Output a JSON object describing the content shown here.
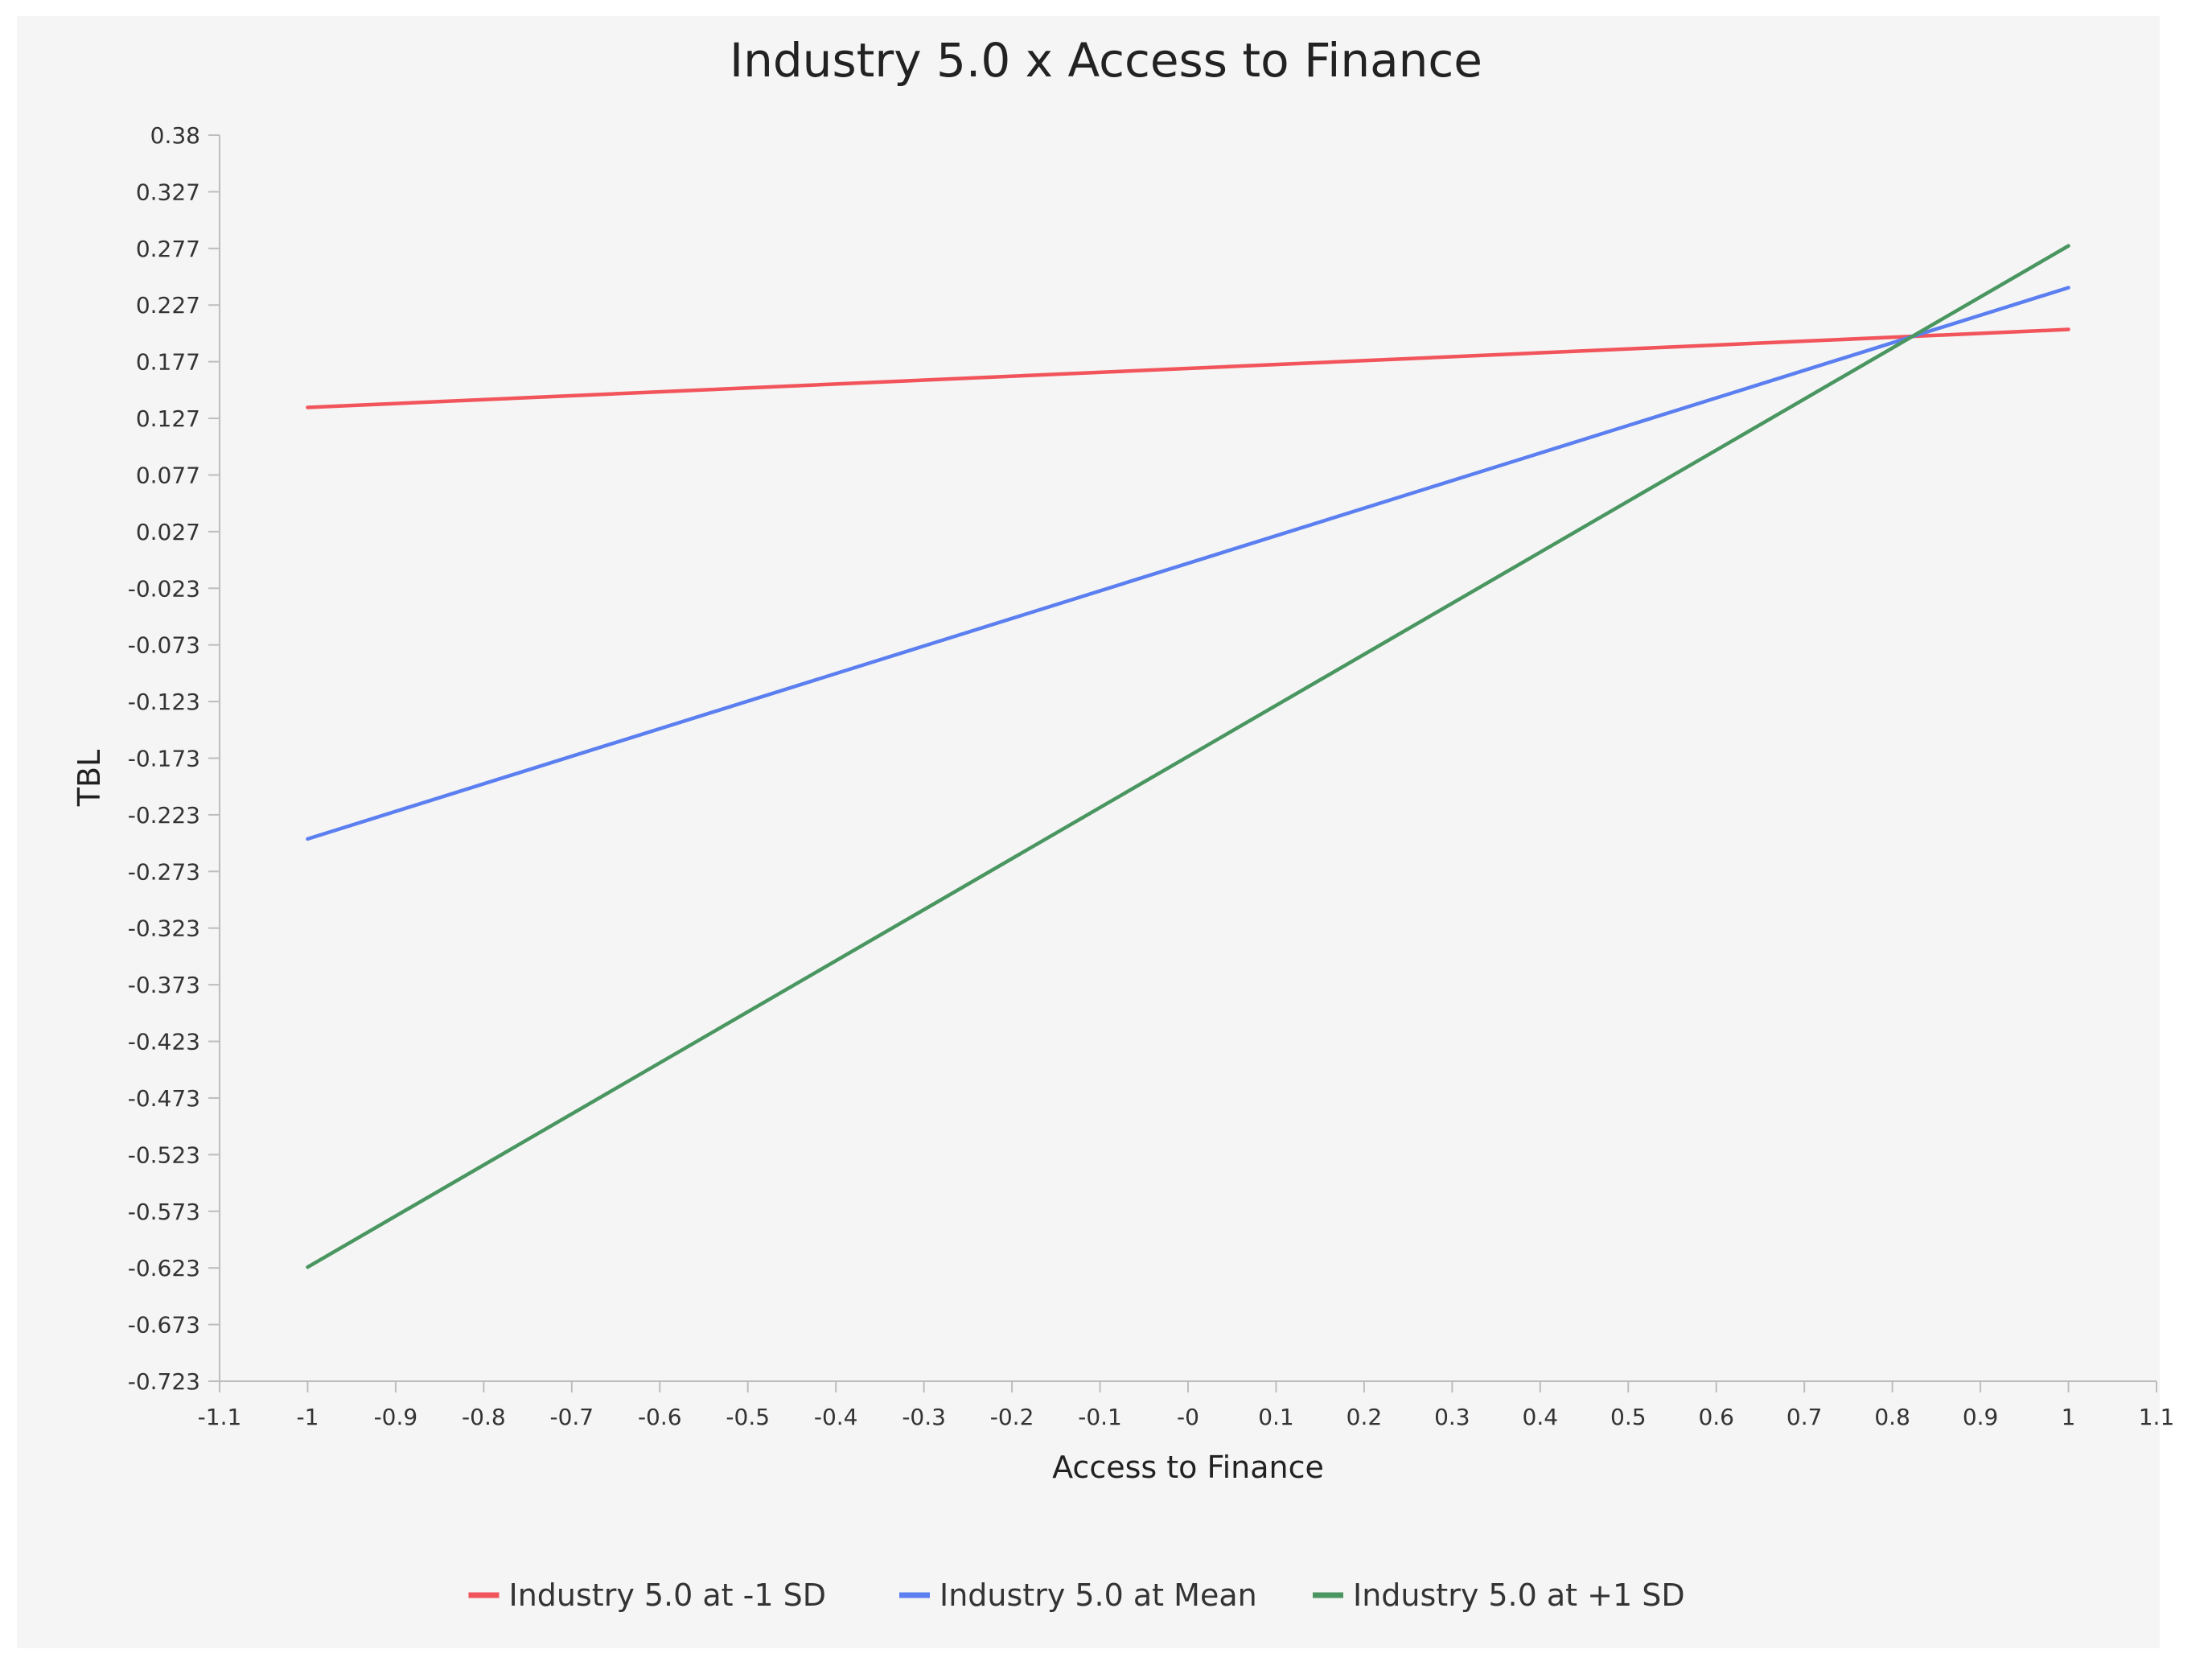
{
  "chart_data": {
    "type": "line",
    "title": "Industry 5.0 x Access to Finance",
    "xlabel": "Access to Finance",
    "ylabel": "TBL",
    "xlim": [
      -1.1,
      1.1
    ],
    "ylim": [
      -0.723,
      0.38
    ],
    "x_ticks": [
      "-1.1",
      "-1",
      "-0.9",
      "-0.8",
      "-0.7",
      "-0.6",
      "-0.5",
      "-0.4",
      "-0.3",
      "-0.2",
      "-0.1",
      "-0",
      "0.1",
      "0.2",
      "0.3",
      "0.4",
      "0.5",
      "0.6",
      "0.7",
      "0.8",
      "0.9",
      "1",
      "1.1"
    ],
    "y_ticks": [
      "0.38",
      "0.327",
      "0.277",
      "0.227",
      "0.177",
      "0.127",
      "0.077",
      "0.027",
      "-0.023",
      "-0.073",
      "-0.123",
      "-0.173",
      "-0.223",
      "-0.273",
      "-0.323",
      "-0.373",
      "-0.423",
      "-0.473",
      "-0.523",
      "-0.573",
      "-0.623",
      "-0.673",
      "-0.723"
    ],
    "grid": false,
    "legend_position": "bottom",
    "series": [
      {
        "name": "Industry 5.0 at -1 SD",
        "color": "#f2545b",
        "x": [
          -1,
          1
        ],
        "y": [
          0.139,
          0.208
        ]
      },
      {
        "name": "Industry 5.0 at Mean",
        "color": "#5b7ff0",
        "x": [
          -1,
          1
        ],
        "y": [
          -0.243,
          0.245
        ]
      },
      {
        "name": "Industry 5.0 at +1 SD",
        "color": "#4a9660",
        "x": [
          -1,
          1
        ],
        "y": [
          -0.622,
          0.282
        ]
      }
    ]
  }
}
